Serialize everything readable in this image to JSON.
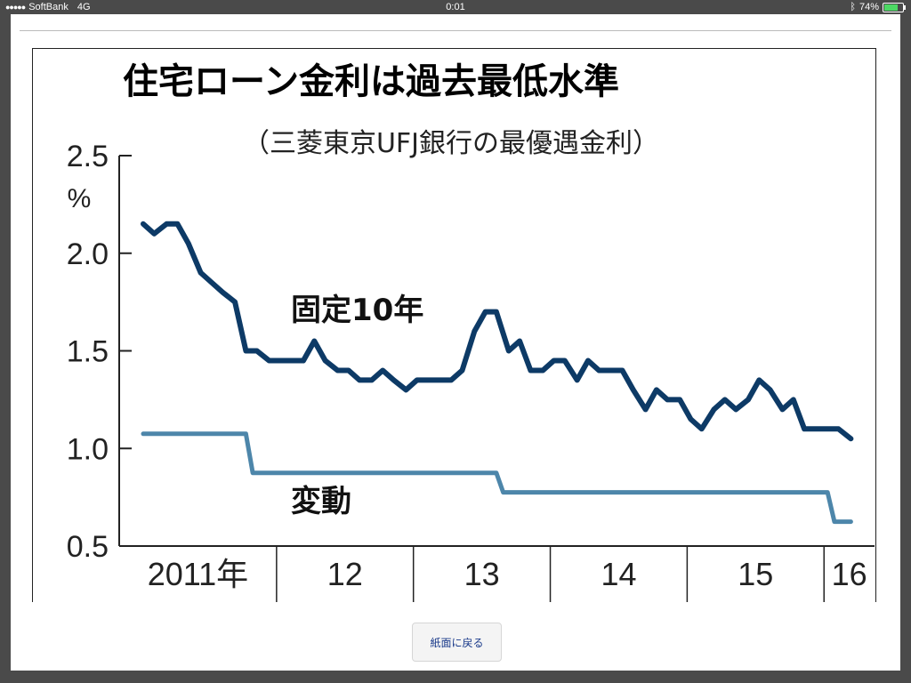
{
  "status_bar": {
    "carrier": "SoftBank",
    "network": "4G",
    "time": "0:01",
    "battery_percent": "74%",
    "battery_level": 0.74,
    "icons": [
      "signal-dots-icon",
      "bluetooth-icon",
      "battery-icon"
    ]
  },
  "back_button_label": "紙面に戻る",
  "colors": {
    "fixed_series": "#0d3a66",
    "variable_series": "#4d86aa",
    "accent_button_text": "#1a3a8a"
  },
  "chart_data": {
    "type": "line",
    "title": "住宅ローン金利は過去最低水準",
    "subtitle": "（三菱東京UFJ銀行の最優遇金利）",
    "ylabel": "%",
    "ylim": [
      0.5,
      2.5
    ],
    "yticks": [
      "2.5",
      "2.0",
      "1.5",
      "1.0",
      "0.5"
    ],
    "xlim": [
      2011.0,
      2016.2
    ],
    "x_year_labels": [
      {
        "label": "2011年",
        "start": 2011.0,
        "end": 2012.0
      },
      {
        "label": "12",
        "start": 2012.0,
        "end": 2013.0
      },
      {
        "label": "13",
        "start": 2013.0,
        "end": 2014.0
      },
      {
        "label": "14",
        "start": 2014.0,
        "end": 2015.0
      },
      {
        "label": "15",
        "start": 2015.0,
        "end": 2016.0
      },
      {
        "label": "16",
        "start": 2016.0,
        "end": 2016.2
      }
    ],
    "grid": false,
    "series": [
      {
        "name": "固定10年",
        "points": [
          [
            2011.0,
            2.15
          ],
          [
            2011.08,
            2.1
          ],
          [
            2011.17,
            2.15
          ],
          [
            2011.25,
            2.15
          ],
          [
            2011.33,
            2.05
          ],
          [
            2011.42,
            1.9
          ],
          [
            2011.5,
            1.85
          ],
          [
            2011.58,
            1.8
          ],
          [
            2011.67,
            1.75
          ],
          [
            2011.75,
            1.5
          ],
          [
            2011.83,
            1.5
          ],
          [
            2011.92,
            1.45
          ],
          [
            2012.0,
            1.45
          ],
          [
            2012.08,
            1.45
          ],
          [
            2012.17,
            1.45
          ],
          [
            2012.25,
            1.55
          ],
          [
            2012.33,
            1.45
          ],
          [
            2012.42,
            1.4
          ],
          [
            2012.5,
            1.4
          ],
          [
            2012.58,
            1.35
          ],
          [
            2012.67,
            1.35
          ],
          [
            2012.75,
            1.4
          ],
          [
            2012.83,
            1.35
          ],
          [
            2012.92,
            1.3
          ],
          [
            2013.0,
            1.35
          ],
          [
            2013.08,
            1.35
          ],
          [
            2013.17,
            1.35
          ],
          [
            2013.25,
            1.35
          ],
          [
            2013.33,
            1.4
          ],
          [
            2013.42,
            1.6
          ],
          [
            2013.5,
            1.7
          ],
          [
            2013.58,
            1.7
          ],
          [
            2013.67,
            1.5
          ],
          [
            2013.75,
            1.55
          ],
          [
            2013.83,
            1.4
          ],
          [
            2013.92,
            1.4
          ],
          [
            2014.0,
            1.45
          ],
          [
            2014.08,
            1.45
          ],
          [
            2014.17,
            1.35
          ],
          [
            2014.25,
            1.45
          ],
          [
            2014.33,
            1.4
          ],
          [
            2014.42,
            1.4
          ],
          [
            2014.5,
            1.4
          ],
          [
            2014.58,
            1.3
          ],
          [
            2014.67,
            1.2
          ],
          [
            2014.75,
            1.3
          ],
          [
            2014.83,
            1.25
          ],
          [
            2014.92,
            1.25
          ],
          [
            2015.0,
            1.15
          ],
          [
            2015.08,
            1.1
          ],
          [
            2015.17,
            1.2
          ],
          [
            2015.25,
            1.25
          ],
          [
            2015.33,
            1.2
          ],
          [
            2015.42,
            1.25
          ],
          [
            2015.5,
            1.35
          ],
          [
            2015.58,
            1.3
          ],
          [
            2015.67,
            1.2
          ],
          [
            2015.75,
            1.25
          ],
          [
            2015.83,
            1.1
          ],
          [
            2015.92,
            1.1
          ],
          [
            2016.0,
            1.1
          ],
          [
            2016.08,
            1.1
          ],
          [
            2016.17,
            1.05
          ]
        ]
      },
      {
        "name": "変動",
        "points": [
          [
            2011.0,
            1.075
          ],
          [
            2011.75,
            1.075
          ],
          [
            2011.8,
            0.875
          ],
          [
            2013.58,
            0.875
          ],
          [
            2013.63,
            0.775
          ],
          [
            2016.0,
            0.775
          ],
          [
            2016.05,
            0.625
          ],
          [
            2016.17,
            0.625
          ]
        ]
      }
    ]
  }
}
